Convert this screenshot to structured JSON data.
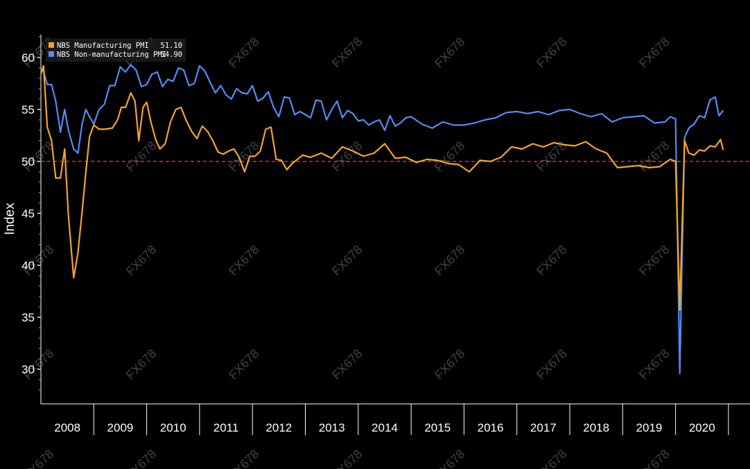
{
  "chart_data": {
    "type": "line",
    "title": "",
    "xlabel": "",
    "ylabel": "Index",
    "ylim": [
      27,
      63
    ],
    "yticks": [
      30,
      35,
      40,
      45,
      50,
      55,
      60
    ],
    "xlim": [
      2008.0,
      2020.9
    ],
    "year_labels": [
      "2008",
      "2009",
      "2010",
      "2011",
      "2012",
      "2013",
      "2014",
      "2015",
      "2016",
      "2017",
      "2018",
      "2019",
      "2020"
    ],
    "reference_line": {
      "value": 50,
      "color": "#e03030",
      "style": "dashed"
    },
    "watermark": "FX678",
    "legend": {
      "position": "top-left"
    },
    "series": [
      {
        "name": "NBS Manufacturing PMI",
        "last_value": "51.10",
        "color": "#f5a623",
        "x": [
          2008.0,
          2008.05,
          2008.12,
          2008.2,
          2008.28,
          2008.37,
          2008.45,
          2008.52,
          2008.62,
          2008.7,
          2008.78,
          2008.85,
          2008.92,
          2009.0,
          2009.1,
          2009.2,
          2009.35,
          2009.45,
          2009.52,
          2009.6,
          2009.7,
          2009.78,
          2009.85,
          2009.93,
          2010.0,
          2010.08,
          2010.17,
          2010.25,
          2010.35,
          2010.45,
          2010.55,
          2010.65,
          2010.75,
          2010.85,
          2010.95,
          2011.05,
          2011.15,
          2011.25,
          2011.35,
          2011.45,
          2011.55,
          2011.65,
          2011.75,
          2011.85,
          2011.95,
          2012.05,
          2012.15,
          2012.25,
          2012.35,
          2012.45,
          2012.55,
          2012.65,
          2012.75,
          2012.85,
          2012.95,
          2013.1,
          2013.3,
          2013.5,
          2013.7,
          2013.9,
          2014.1,
          2014.3,
          2014.5,
          2014.7,
          2014.9,
          2015.1,
          2015.3,
          2015.5,
          2015.7,
          2015.9,
          2016.1,
          2016.3,
          2016.5,
          2016.7,
          2016.9,
          2017.1,
          2017.3,
          2017.5,
          2017.7,
          2017.9,
          2018.1,
          2018.3,
          2018.5,
          2018.7,
          2018.9,
          2019.1,
          2019.3,
          2019.5,
          2019.7,
          2019.9,
          2020.0,
          2020.08,
          2020.17,
          2020.25,
          2020.35,
          2020.45,
          2020.55,
          2020.65,
          2020.75,
          2020.85,
          2020.9
        ],
        "values": [
          58.4,
          59.2,
          53.3,
          52.0,
          48.4,
          48.4,
          51.2,
          44.8,
          38.8,
          41.2,
          45.2,
          49.0,
          52.4,
          53.5,
          53.1,
          53.1,
          53.2,
          54.0,
          55.2,
          55.2,
          56.6,
          55.8,
          52.0,
          55.2,
          55.7,
          53.8,
          52.1,
          51.2,
          51.7,
          53.8,
          55.0,
          55.2,
          53.9,
          52.9,
          52.2,
          53.4,
          52.9,
          52.0,
          50.9,
          50.7,
          51.0,
          51.2,
          50.4,
          49.0,
          50.5,
          50.5,
          51.0,
          53.1,
          53.3,
          50.2,
          50.1,
          49.2,
          49.8,
          50.2,
          50.6,
          50.4,
          50.8,
          50.3,
          51.4,
          51.0,
          50.5,
          50.8,
          51.7,
          50.3,
          50.4,
          49.9,
          50.2,
          50.1,
          49.8,
          49.7,
          49.0,
          50.1,
          50.0,
          50.4,
          51.4,
          51.2,
          51.7,
          51.4,
          51.8,
          51.6,
          51.5,
          51.9,
          51.2,
          50.8,
          49.4,
          49.5,
          49.6,
          49.4,
          49.5,
          50.2,
          50.0,
          35.7,
          52.0,
          50.8,
          50.6,
          51.1,
          51.0,
          51.5,
          51.4,
          52.1,
          51.1
        ]
      },
      {
        "name": "NBS Non-manufacturing PMI",
        "last_value": "54.90",
        "color": "#4f8ef7",
        "x": [
          2008.0,
          2008.05,
          2008.12,
          2008.2,
          2008.28,
          2008.37,
          2008.45,
          2008.52,
          2008.62,
          2008.7,
          2008.78,
          2008.85,
          2008.92,
          2009.0,
          2009.1,
          2009.2,
          2009.3,
          2009.4,
          2009.5,
          2009.6,
          2009.7,
          2009.8,
          2009.9,
          2010.0,
          2010.1,
          2010.2,
          2010.3,
          2010.4,
          2010.5,
          2010.6,
          2010.7,
          2010.8,
          2010.9,
          2011.0,
          2011.1,
          2011.2,
          2011.3,
          2011.4,
          2011.5,
          2011.6,
          2011.7,
          2011.8,
          2011.9,
          2012.0,
          2012.1,
          2012.2,
          2012.3,
          2012.4,
          2012.5,
          2012.6,
          2012.7,
          2012.8,
          2012.9,
          2013.0,
          2013.1,
          2013.2,
          2013.3,
          2013.4,
          2013.5,
          2013.6,
          2013.7,
          2013.8,
          2013.9,
          2014.0,
          2014.1,
          2014.2,
          2014.3,
          2014.4,
          2014.5,
          2014.6,
          2014.7,
          2014.8,
          2014.9,
          2015.0,
          2015.2,
          2015.4,
          2015.6,
          2015.8,
          2016.0,
          2016.2,
          2016.4,
          2016.6,
          2016.8,
          2017.0,
          2017.2,
          2017.4,
          2017.6,
          2017.8,
          2018.0,
          2018.2,
          2018.4,
          2018.6,
          2018.8,
          2019.0,
          2019.2,
          2019.4,
          2019.6,
          2019.8,
          2019.9,
          2020.0,
          2020.08,
          2020.17,
          2020.25,
          2020.35,
          2020.45,
          2020.55,
          2020.65,
          2020.75,
          2020.82,
          2020.9
        ],
        "values": [
          58.8,
          58.7,
          57.4,
          57.4,
          55.8,
          52.8,
          55.0,
          53.0,
          51.2,
          50.8,
          53.6,
          55.0,
          54.3,
          53.6,
          55.0,
          55.5,
          57.3,
          57.3,
          59.1,
          58.6,
          59.3,
          58.8,
          57.2,
          57.4,
          58.4,
          58.6,
          57.2,
          57.9,
          57.7,
          59.0,
          58.8,
          57.3,
          57.5,
          59.2,
          58.7,
          57.6,
          56.6,
          57.3,
          56.4,
          56.0,
          57.0,
          56.6,
          56.5,
          57.3,
          55.8,
          56.1,
          56.7,
          55.2,
          54.3,
          56.2,
          56.1,
          54.5,
          54.8,
          54.5,
          54.2,
          55.9,
          55.8,
          54.0,
          55.0,
          55.8,
          54.2,
          54.9,
          54.6,
          53.9,
          54.0,
          53.5,
          53.8,
          54.0,
          53.0,
          54.4,
          53.4,
          53.7,
          54.2,
          54.3,
          53.6,
          53.2,
          53.8,
          53.5,
          53.5,
          53.7,
          54.0,
          54.2,
          54.7,
          54.8,
          54.6,
          54.8,
          54.5,
          54.9,
          55.0,
          54.6,
          54.3,
          54.6,
          53.8,
          54.2,
          54.3,
          54.4,
          53.7,
          53.8,
          54.3,
          54.1,
          29.6,
          52.3,
          53.2,
          53.6,
          54.4,
          54.2,
          55.9,
          56.2,
          54.4,
          54.9
        ]
      }
    ]
  }
}
